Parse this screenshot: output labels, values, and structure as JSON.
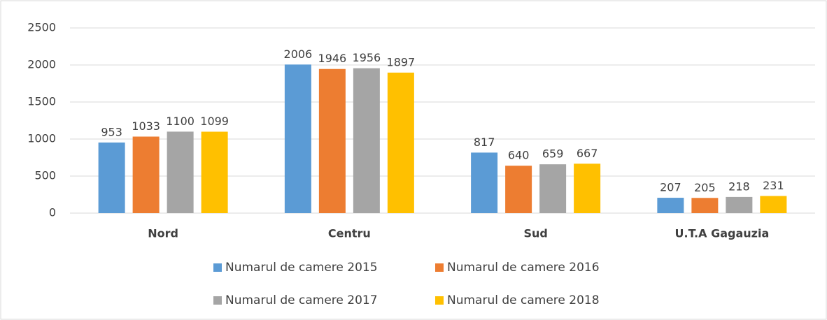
{
  "chart_data": {
    "type": "bar",
    "categories": [
      "Nord",
      "Centru",
      "Sud",
      "U.T.A Gagauzia"
    ],
    "series": [
      {
        "name": "Numarul de camere 2015",
        "color": "#5b9bd5",
        "values": [
          953,
          2006,
          817,
          207
        ]
      },
      {
        "name": "Numarul de camere 2016",
        "color": "#ed7d31",
        "values": [
          1033,
          1946,
          640,
          205
        ]
      },
      {
        "name": "Numarul de camere 2017",
        "color": "#a5a5a5",
        "values": [
          1100,
          1956,
          659,
          218
        ]
      },
      {
        "name": "Numarul de camere 2018",
        "color": "#ffc000",
        "values": [
          1099,
          1897,
          667,
          231
        ]
      }
    ],
    "ylim": [
      0,
      2500
    ],
    "yticks": [
      0,
      500,
      1000,
      1500,
      2000,
      2500
    ],
    "grid": true,
    "legend": "bottom"
  }
}
